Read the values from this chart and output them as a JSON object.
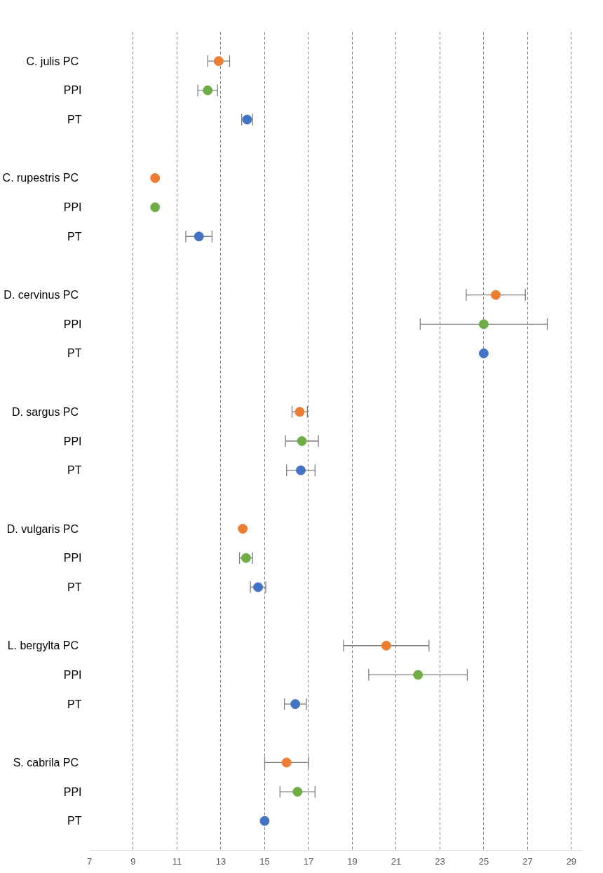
{
  "chart_data": {
    "type": "scatter",
    "orientation": "horizontal",
    "categories": [
      "C. julis  PC",
      "PPI",
      "PT",
      null,
      "C. rupestris  PC",
      "PPI",
      "PT",
      null,
      "D. cervinus  PC",
      "PPI",
      "PT",
      null,
      "D. sargus  PC",
      "PPI",
      "PT",
      null,
      "D. vulgaris  PC",
      "PPI",
      "PT",
      null,
      "L. bergylta  PC",
      "PPI",
      "PT",
      null,
      "S. cabrila  PC",
      "PPI",
      "PT"
    ],
    "values": [
      12.9,
      12.4,
      14.2,
      null,
      10.0,
      10.0,
      12.0,
      null,
      25.55,
      25.0,
      25.0,
      null,
      16.6,
      16.7,
      16.65,
      null,
      14.0,
      14.15,
      14.7,
      null,
      20.55,
      22.0,
      16.4,
      null,
      16.0,
      16.5,
      15.0
    ],
    "errors": [
      0.5,
      0.45,
      0.25,
      null,
      null,
      null,
      0.6,
      null,
      1.35,
      2.9,
      null,
      null,
      0.35,
      0.75,
      0.65,
      null,
      null,
      0.3,
      0.35,
      null,
      1.95,
      2.25,
      0.5,
      null,
      1.0,
      0.8,
      null
    ],
    "colors": [
      "#ed7d31",
      "#70ad47",
      "#4472c4",
      null,
      "#ed7d31",
      "#70ad47",
      "#4472c4",
      null,
      "#ed7d31",
      "#70ad47",
      "#4472c4",
      null,
      "#ed7d31",
      "#70ad47",
      "#4472c4",
      null,
      "#ed7d31",
      "#70ad47",
      "#4472c4",
      null,
      "#ed7d31",
      "#70ad47",
      "#4472c4",
      null,
      "#ed7d31",
      "#70ad47",
      "#4472c4"
    ],
    "xlim": [
      7,
      29.5
    ],
    "xticks": [
      7,
      9,
      11,
      13,
      15,
      17,
      19,
      21,
      23,
      25,
      27,
      29
    ],
    "grid": "x",
    "marker": "circle"
  }
}
